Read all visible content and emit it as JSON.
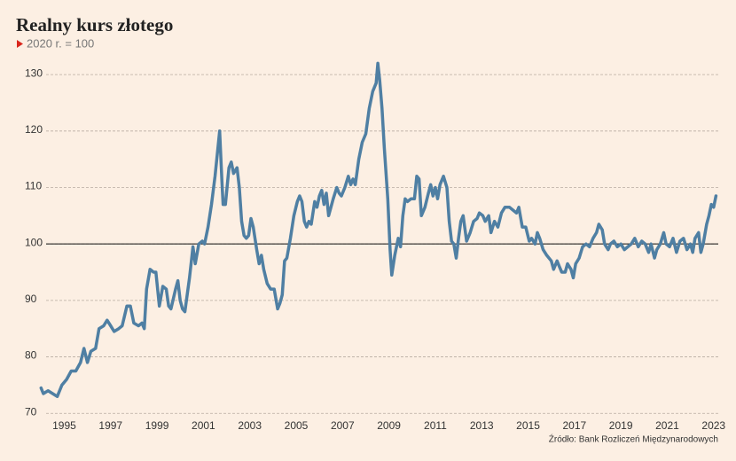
{
  "chart_data": {
    "type": "line",
    "title": "Realny kurs złotego",
    "subtitle": "2020 r. = 100",
    "source": "Źródło: Bank Rozliczeń Międzynarodowych",
    "xlim": [
      1993.3,
      2023.2
    ],
    "xticks": [
      1995,
      1997,
      1999,
      2001,
      2003,
      2005,
      2007,
      2009,
      2011,
      2013,
      2015,
      2017,
      2019,
      2021,
      2023
    ],
    "ylim": [
      68,
      133
    ],
    "yticks": [
      70,
      80,
      90,
      100,
      110,
      120,
      130
    ],
    "reference_line": 100,
    "grid": true,
    "x": [
      1994.0,
      1994.1,
      1994.3,
      1994.5,
      1994.7,
      1994.9,
      1995.1,
      1995.3,
      1995.5,
      1995.7,
      1995.85,
      1996.0,
      1996.15,
      1996.35,
      1996.5,
      1996.7,
      1996.85,
      1997.0,
      1997.15,
      1997.35,
      1997.5,
      1997.7,
      1997.85,
      1998.0,
      1998.2,
      1998.35,
      1998.45,
      1998.55,
      1998.7,
      1998.85,
      1998.95,
      1999.1,
      1999.25,
      1999.4,
      1999.5,
      1999.6,
      1999.8,
      1999.9,
      2000.0,
      2000.1,
      2000.2,
      2000.4,
      2000.55,
      2000.65,
      2000.8,
      2000.95,
      2001.05,
      2001.2,
      2001.35,
      2001.5,
      2001.6,
      2001.7,
      2001.8,
      2001.85,
      2001.95,
      2002.1,
      2002.2,
      2002.3,
      2002.45,
      2002.55,
      2002.65,
      2002.75,
      2002.85,
      2002.95,
      2003.05,
      2003.15,
      2003.3,
      2003.4,
      2003.5,
      2003.6,
      2003.75,
      2003.9,
      2004.05,
      2004.2,
      2004.3,
      2004.4,
      2004.5,
      2004.6,
      2004.75,
      2004.9,
      2005.05,
      2005.15,
      2005.25,
      2005.35,
      2005.45,
      2005.55,
      2005.65,
      2005.8,
      2005.9,
      2006.0,
      2006.1,
      2006.2,
      2006.3,
      2006.4,
      2006.5,
      2006.6,
      2006.75,
      2006.85,
      2006.95,
      2007.1,
      2007.25,
      2007.35,
      2007.45,
      2007.55,
      2007.7,
      2007.85,
      2008.0,
      2008.15,
      2008.3,
      2008.45,
      2008.52,
      2008.6,
      2008.7,
      2008.8,
      2008.95,
      2009.05,
      2009.12,
      2009.25,
      2009.4,
      2009.5,
      2009.6,
      2009.7,
      2009.8,
      2009.95,
      2010.1,
      2010.2,
      2010.3,
      2010.4,
      2010.55,
      2010.7,
      2010.8,
      2010.9,
      2011.0,
      2011.1,
      2011.2,
      2011.35,
      2011.5,
      2011.6,
      2011.7,
      2011.8,
      2011.9,
      2012.0,
      2012.1,
      2012.2,
      2012.35,
      2012.5,
      2012.65,
      2012.8,
      2012.9,
      2013.05,
      2013.15,
      2013.3,
      2013.4,
      2013.55,
      2013.7,
      2013.85,
      2014.0,
      2014.2,
      2014.35,
      2014.5,
      2014.6,
      2014.75,
      2014.9,
      2015.05,
      2015.15,
      2015.3,
      2015.4,
      2015.5,
      2015.65,
      2015.8,
      2016.0,
      2016.1,
      2016.25,
      2016.35,
      2016.45,
      2016.6,
      2016.7,
      2016.85,
      2016.95,
      2017.05,
      2017.2,
      2017.35,
      2017.5,
      2017.65,
      2017.8,
      2017.95,
      2018.05,
      2018.2,
      2018.3,
      2018.45,
      2018.55,
      2018.7,
      2018.85,
      2019.0,
      2019.15,
      2019.3,
      2019.45,
      2019.6,
      2019.75,
      2019.9,
      2020.05,
      2020.2,
      2020.3,
      2020.45,
      2020.55,
      2020.7,
      2020.85,
      2020.95,
      2021.1,
      2021.25,
      2021.4,
      2021.55,
      2021.7,
      2021.85,
      2022.0,
      2022.1,
      2022.2,
      2022.35,
      2022.45,
      2022.55,
      2022.7,
      2022.8,
      2022.9,
      2023.0,
      2023.1
    ],
    "series": [
      {
        "name": "Realny kurs złotego",
        "color": "#4f7fa3",
        "values": [
          74.5,
          73.5,
          74,
          73.5,
          73,
          75,
          76,
          77.5,
          77.5,
          79,
          81.5,
          79,
          81,
          81.5,
          85,
          85.5,
          86.5,
          85.5,
          84.5,
          85,
          85.5,
          89,
          89,
          86,
          85.5,
          86,
          85,
          92,
          95.5,
          95,
          95,
          89,
          92.5,
          92,
          89,
          88.5,
          92,
          93.5,
          90,
          88.5,
          88,
          94,
          99.5,
          96.5,
          100,
          100.5,
          100,
          103,
          107,
          112,
          116,
          120,
          111,
          107,
          107,
          113.5,
          114.5,
          112.5,
          113.5,
          110,
          104,
          101.5,
          101,
          101.5,
          104.5,
          103,
          99,
          96.5,
          98,
          95.5,
          93,
          92,
          92,
          88.5,
          89.5,
          91,
          97,
          97.5,
          101,
          105,
          107.5,
          108.5,
          107.5,
          104,
          103,
          104,
          103.5,
          107.5,
          106.5,
          108.5,
          109.5,
          107,
          109,
          105,
          106.5,
          108,
          110,
          109,
          108.5,
          110,
          112,
          110.5,
          111.5,
          110.5,
          115,
          118,
          119.5,
          124,
          127,
          128.5,
          132,
          129,
          124,
          117,
          108,
          99,
          94.5,
          98,
          101,
          99.5,
          105,
          108,
          107.5,
          108,
          108,
          112,
          111.5,
          105,
          106.5,
          109,
          110.5,
          108.5,
          110,
          108,
          110.5,
          112,
          110,
          104,
          100.5,
          100,
          97.5,
          101,
          104,
          105,
          100.5,
          102,
          104,
          104.5,
          105.5,
          105,
          104,
          105,
          102,
          104,
          103,
          105.5,
          106.5,
          106.5,
          106,
          105.5,
          106.5,
          103,
          103,
          100.5,
          101,
          100,
          102,
          101,
          99,
          98,
          97,
          95.5,
          97,
          96,
          95,
          95,
          96.5,
          95.5,
          94,
          96.5,
          97.5,
          99.5,
          100,
          99.5,
          101,
          102,
          103.5,
          102.5,
          100,
          99,
          100,
          100.5,
          99.5,
          100,
          99,
          99.5,
          100,
          101,
          99.5,
          100.5,
          100,
          98.5,
          100,
          97.5,
          99,
          100,
          102,
          100,
          99.5,
          101,
          98.5,
          100.5,
          101,
          99,
          100,
          98.5,
          101,
          102,
          98.5,
          100,
          103.5,
          105,
          107,
          106.5,
          108.5
        ]
      }
    ]
  }
}
